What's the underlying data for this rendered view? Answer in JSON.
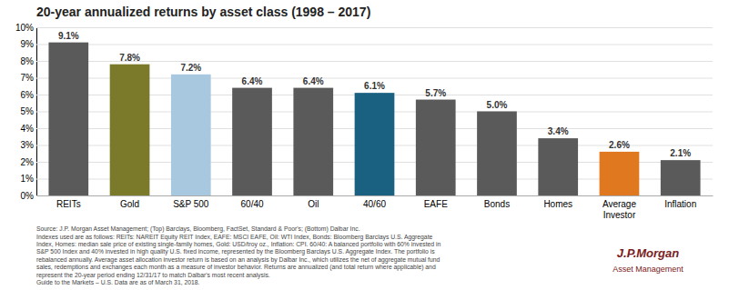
{
  "chart_data": {
    "type": "bar",
    "title": "20-year annualized returns by asset class (1998 – 2017)",
    "categories": [
      "REITs",
      "Gold",
      "S&P 500",
      "60/40",
      "Oil",
      "40/60",
      "EAFE",
      "Bonds",
      "Homes",
      "Average\nInvestor",
      "Inflation"
    ],
    "values": [
      9.1,
      7.8,
      7.2,
      6.4,
      6.4,
      6.1,
      5.7,
      5.0,
      3.4,
      2.6,
      2.1
    ],
    "value_labels": [
      "9.1%",
      "7.8%",
      "7.2%",
      "6.4%",
      "6.4%",
      "6.1%",
      "5.7%",
      "5.0%",
      "3.4%",
      "2.6%",
      "2.1%"
    ],
    "colors": [
      "#5a5a5a",
      "#7a7a2a",
      "#a8c8e0",
      "#5a5a5a",
      "#5a5a5a",
      "#1a6080",
      "#5a5a5a",
      "#5a5a5a",
      "#5a5a5a",
      "#e07820",
      "#5a5a5a"
    ],
    "ylim": [
      0,
      10
    ],
    "yticks": [
      {
        "value": 0,
        "label": "0%"
      },
      {
        "value": 1,
        "label": "1%"
      },
      {
        "value": 2,
        "label": "2%"
      },
      {
        "value": 3,
        "label": "3%"
      },
      {
        "value": 4,
        "label": "4%"
      },
      {
        "value": 5,
        "label": "5%"
      },
      {
        "value": 6,
        "label": "6%"
      },
      {
        "value": 7,
        "label": "7%"
      },
      {
        "value": 8,
        "label": "8%"
      },
      {
        "value": 9,
        "label": "9%"
      },
      {
        "value": 10,
        "label": "10%"
      }
    ],
    "grid": true,
    "data_labels": true,
    "annotations": [
      "Source: J.P. Morgan Asset Management; (Top) Barclays, Bloomberg, FactSet, Standard & Poor's; (Bottom) Dalbar Inc.\nIndexes used are as follows: REITs: NAREIT Equity REIT Index, EAFE: MSCI EAFE, Oil: WTI Index, Bonds: Bloomberg Barclays U.S. Aggregate\nIndex, Homes: median sale price of existing single-family homes, Gold: USD/troy oz., Inflation: CPI. 60/40: A balanced portfolio with 60% invested in\nS&P 500 Index and 40% invested in high quality U.S. fixed income, represented by the Bloomberg Barclays U.S. Aggregate Index. The portfolio is\nrebalanced annually. Average asset allocation investor return is based on an analysis by Dalbar Inc., which utilizes the net of aggregate mutual fund\nsales, redemptions and exchanges each month as a measure of investor behavior. Returns are annualized (and total return where applicable) and\nrepresent the 20-year period ending 12/31/17 to match Dalbar's most recent analysis.\nGuide to the Markets – U.S. Data are as of March 31, 2018.",
      "J.P.Morgan",
      "Asset Management"
    ]
  }
}
